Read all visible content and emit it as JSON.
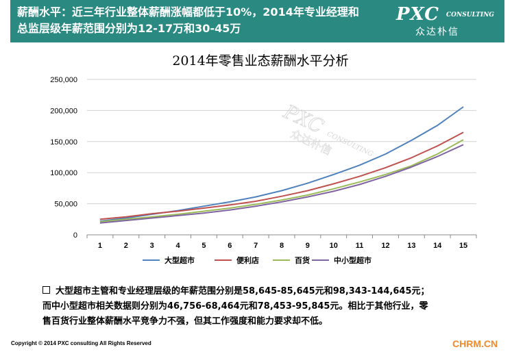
{
  "header": {
    "title": "薪酬水平：近三年行业整体薪酬涨幅都低于10%，2014年专业经理和\n总监层级年薪范围分别为12-17万和30-45万",
    "logo_main": "PXC",
    "logo_sub": "CONSULTING",
    "logo_cn": "众达朴信"
  },
  "watermark": {
    "main": "PXC",
    "sub": "CONSULTING",
    "cn": "众达朴信"
  },
  "chart_data": {
    "type": "line",
    "title": "2014年零售业态薪酬水平分析",
    "x": [
      1,
      2,
      3,
      4,
      5,
      6,
      7,
      8,
      9,
      10,
      11,
      12,
      13,
      14,
      15
    ],
    "y_ticks": [
      "0",
      "50,000",
      "100,000",
      "150,000",
      "200,000",
      "250,000"
    ],
    "ylim": [
      0,
      250000
    ],
    "grid": true,
    "legend_position": "bottom",
    "series": [
      {
        "name": "大型超市",
        "color": "#4f81bd",
        "values": [
          22000,
          27000,
          33000,
          39000,
          46000,
          53000,
          61000,
          71000,
          83000,
          97000,
          112000,
          130000,
          152000,
          176000,
          206000
        ]
      },
      {
        "name": "便利店",
        "color": "#c0504d",
        "values": [
          25000,
          29000,
          34000,
          38000,
          43000,
          48000,
          54000,
          62000,
          71000,
          82000,
          94000,
          108000,
          124000,
          143000,
          165000
        ]
      },
      {
        "name": "百货",
        "color": "#9bbb59",
        "values": [
          21000,
          25000,
          29000,
          33000,
          38000,
          43000,
          49000,
          56000,
          64000,
          74000,
          85000,
          97000,
          111000,
          130000,
          153000
        ]
      },
      {
        "name": "中小型超市",
        "color": "#8064a2",
        "values": [
          19000,
          23000,
          27000,
          31000,
          35000,
          40000,
          46000,
          53000,
          61000,
          70000,
          81000,
          94000,
          109000,
          126000,
          145000
        ]
      }
    ]
  },
  "notes": {
    "line1": "大型超市主管和专业经理层级的年薪范围分别是58,645-85,645元和98,343-144,645元；",
    "line2": "而中小型超市相关数据则分别为46,756-68,464元和78,453-95,845元。相比于其他行业，零",
    "line3": "售百货行业整体薪酬水平竞争力不强，但其工作强度和能力要求却不低。"
  },
  "footer": {
    "copyright": "Copyright © 2014  PXC consulting All Rights Reserved",
    "site": "CHRM.CN"
  }
}
